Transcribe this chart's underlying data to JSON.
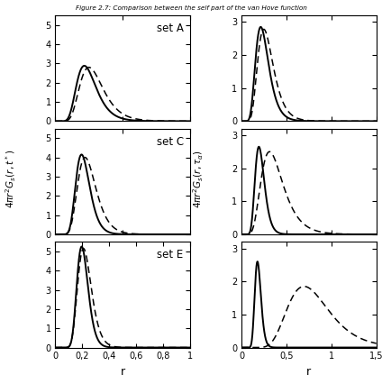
{
  "title": "Figure 2.7: Comparison between the self part of the van Hove function",
  "ylabel_left": "$4\\pi r^2 G_s(r,t^*)$",
  "ylabel_right": "$4\\pi r^2 G_s(r,\\tau_\\alpha)$",
  "xlabel": "r",
  "sets": [
    "set A",
    "set C",
    "set E"
  ],
  "left_xlim": [
    0,
    1.0
  ],
  "right_xlim": [
    0,
    1.5
  ],
  "panels": {
    "A_left": {
      "solid": {
        "mu": 0.17,
        "sig": 0.058,
        "amp": 2.88
      },
      "dashed": {
        "mu": 0.195,
        "sig": 0.068,
        "amp": 2.8
      }
    },
    "A_right": {
      "solid": {
        "mu": 0.17,
        "sig": 0.058,
        "amp": 2.85
      },
      "dashed": {
        "mu": 0.195,
        "sig": 0.068,
        "amp": 2.78
      }
    },
    "C_left": {
      "solid": {
        "mu": 0.168,
        "sig": 0.045,
        "amp": 4.15
      },
      "dashed": {
        "mu": 0.182,
        "sig": 0.056,
        "amp": 4.0
      }
    },
    "C_right": {
      "solid": {
        "mu": 0.168,
        "sig": 0.045,
        "amp": 2.65
      },
      "dashed": {
        "mu": 0.23,
        "sig": 0.09,
        "amp": 2.5
      }
    },
    "E_left": {
      "solid": {
        "mu": 0.178,
        "sig": 0.038,
        "amp": 5.25
      },
      "dashed": {
        "mu": 0.185,
        "sig": 0.045,
        "amp": 5.15
      }
    },
    "E_right": {
      "solid": {
        "mu": 0.165,
        "sig": 0.032,
        "amp": 2.6
      },
      "dashed": {
        "mu": 0.56,
        "sig": 0.185,
        "amp": 1.85
      }
    }
  }
}
